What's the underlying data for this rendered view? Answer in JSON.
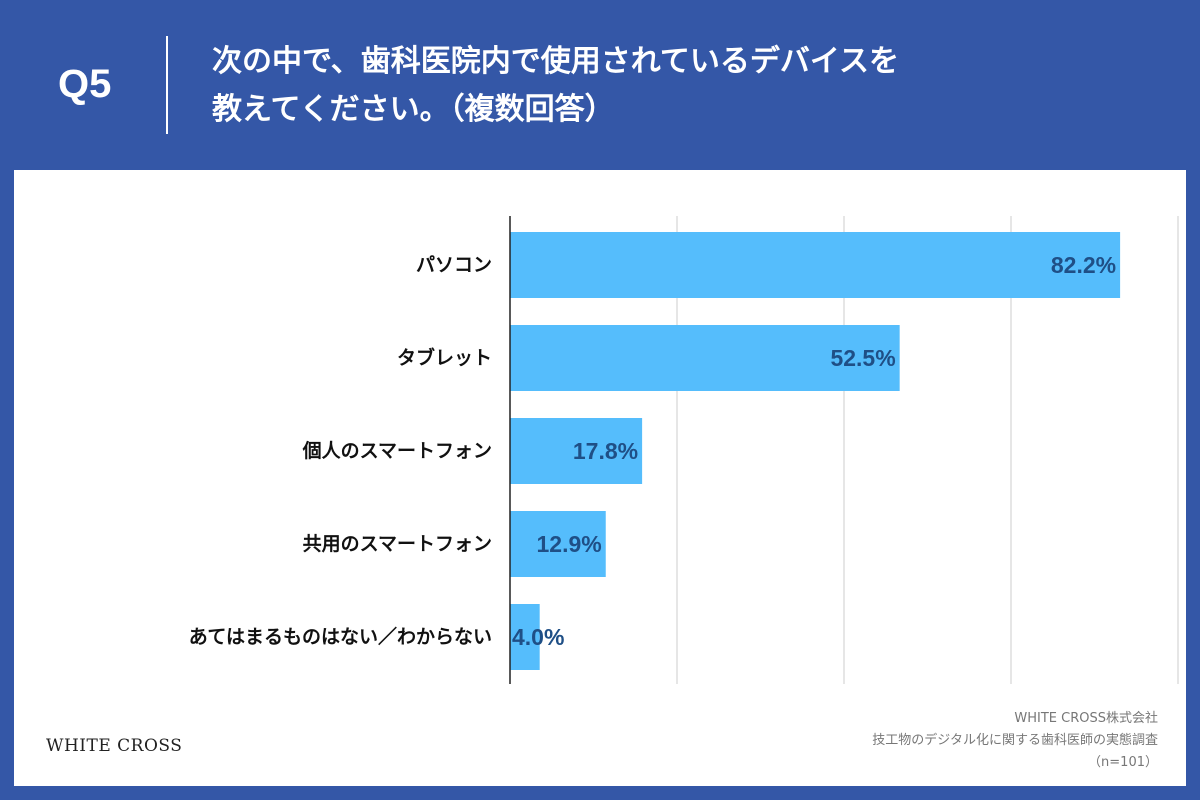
{
  "header": {
    "question_number": "Q5",
    "question_line1": "次の中で、歯科医院内で使用されているデバイスを",
    "question_line2": "教えてください。（複数回答）"
  },
  "footer": {
    "logo": "WHITE CROSS",
    "source_company": "WHITE CROSS株式会社",
    "source_survey": "技工物のデジタル化に関する歯科医師の実態調査",
    "source_n": "（n=101）"
  },
  "colors": {
    "background": "#3457a7",
    "bar": "#55bdfc",
    "value_label": "#1f4f86",
    "grid": "#cccccc"
  },
  "chart_data": {
    "type": "bar",
    "orientation": "horizontal",
    "categories": [
      "パソコン",
      "タブレット",
      "個人のスマートフォン",
      "共用のスマートフォン",
      "あてはまるものはない／わからない"
    ],
    "values": [
      82.2,
      52.5,
      17.8,
      12.9,
      4.0
    ],
    "value_labels": [
      "82.2%",
      "52.5%",
      "17.8%",
      "12.9%",
      "4.0%"
    ],
    "xlim": [
      0,
      90
    ],
    "grid_step": 22.5,
    "grid": true,
    "legend": "none"
  }
}
